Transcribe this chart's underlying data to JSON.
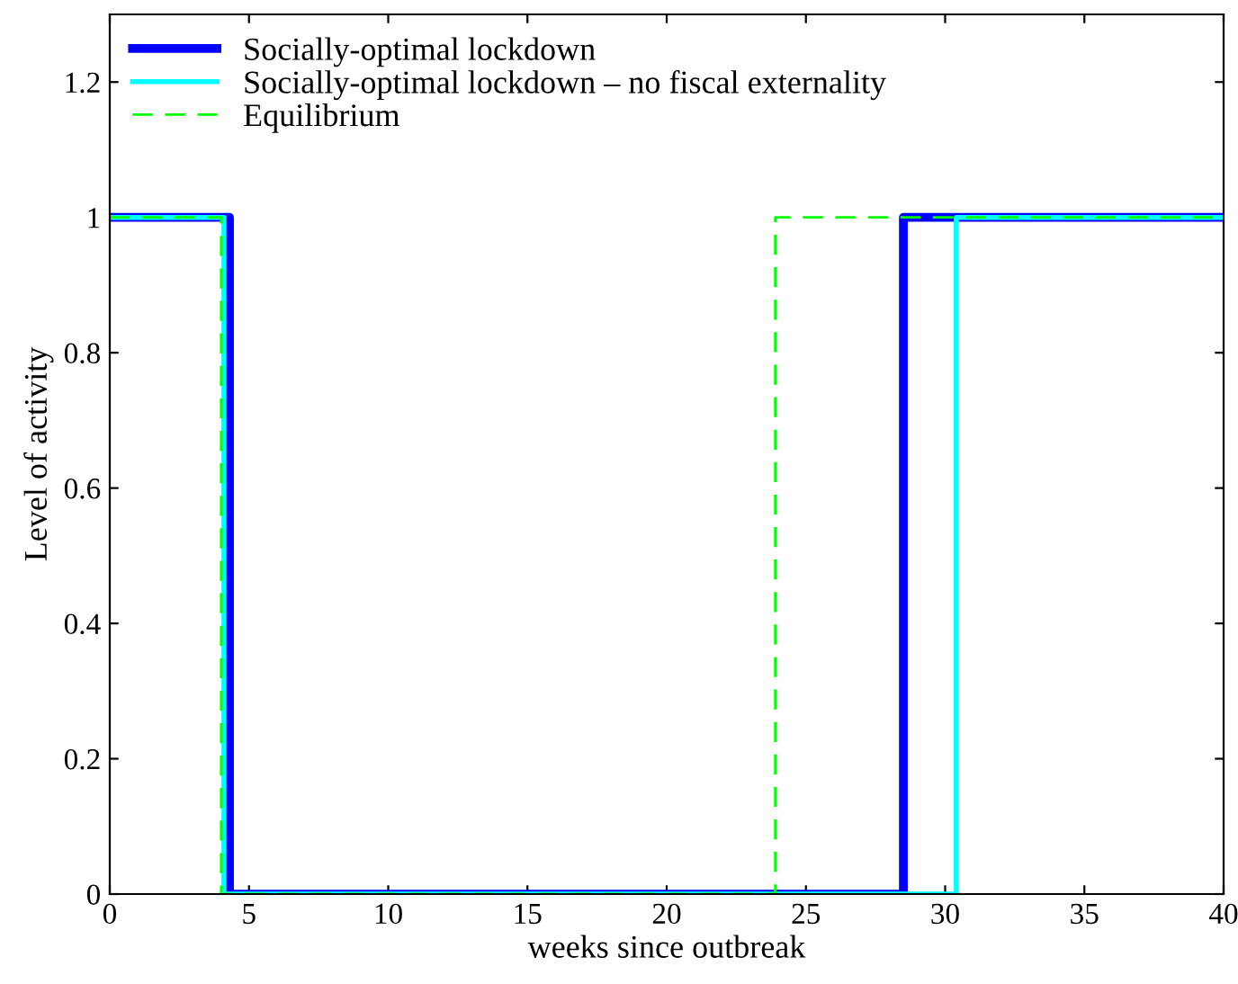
{
  "chart_data": {
    "type": "step",
    "xlabel": "weeks since outbreak",
    "ylabel": "Level of activity",
    "xlim": [
      0,
      40
    ],
    "xticks": [
      0,
      5,
      10,
      15,
      20,
      25,
      30,
      35,
      40
    ],
    "ylim": [
      0,
      1.3
    ],
    "yticks": [
      0,
      0.2,
      0.4,
      0.6,
      0.8,
      1,
      1.2
    ],
    "grid": false,
    "legend": "top left",
    "series": [
      {
        "name": "Socially-optimal lockdown",
        "color": "#0000ff",
        "line_style": "solid",
        "x": [
          0,
          4.3,
          28.5,
          40
        ],
        "values": [
          1,
          0,
          1,
          1
        ]
      },
      {
        "name": "Socially-optimal lockdown – no fiscal externality",
        "color": "#00ffff",
        "line_style": "solid",
        "x": [
          0,
          4.1,
          30.4,
          40
        ],
        "values": [
          1,
          0,
          1,
          1
        ]
      },
      {
        "name": "Equilibrium",
        "color": "#00ff00",
        "line_style": "dashed",
        "x": [
          0,
          4.0,
          23.9,
          40
        ],
        "values": [
          1,
          0,
          1,
          1
        ]
      }
    ]
  }
}
